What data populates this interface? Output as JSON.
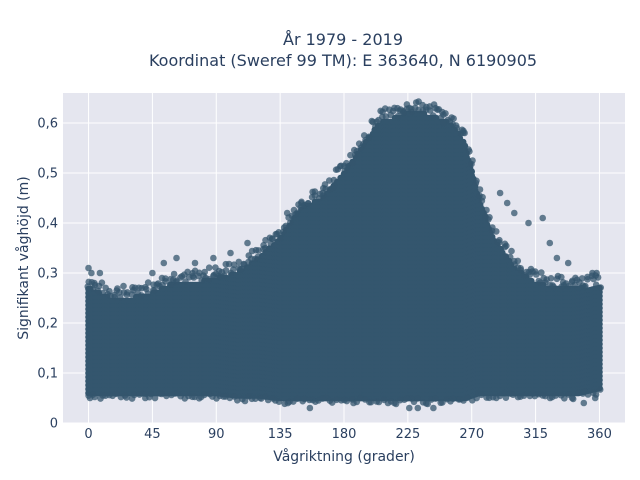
{
  "chart_data": {
    "type": "scatter",
    "title": "År 1979 - 2019",
    "subtitle": "Koordinat (Sweref 99 TM): E 363640, N 6190905",
    "xlabel": "Vågriktning (grader)",
    "ylabel": "Signifikant våghöjd (m)",
    "xlim": [
      -18,
      378
    ],
    "ylim": [
      0,
      0.66
    ],
    "x_ticks": [
      0,
      45,
      90,
      135,
      180,
      225,
      270,
      315,
      360
    ],
    "x_tick_labels": [
      "0",
      "45",
      "90",
      "135",
      "180",
      "225",
      "270",
      "315",
      "360"
    ],
    "y_ticks": [
      0,
      0.1,
      0.2,
      0.3,
      0.4,
      0.5,
      0.6
    ],
    "y_tick_labels": [
      "0",
      "0,1",
      "0,2",
      "0,3",
      "0,4",
      "0,5",
      "0,6"
    ],
    "grid": true,
    "marker_color": "#34566e",
    "background_color": "#e5e6ef",
    "envelope": {
      "direction": [
        0,
        15,
        30,
        45,
        60,
        75,
        90,
        105,
        120,
        135,
        150,
        165,
        180,
        195,
        205,
        215,
        225,
        235,
        245,
        255,
        265,
        275,
        285,
        300,
        315,
        330,
        345,
        360
      ],
      "min_height": [
        0.06,
        0.06,
        0.06,
        0.06,
        0.06,
        0.06,
        0.06,
        0.055,
        0.055,
        0.05,
        0.05,
        0.05,
        0.05,
        0.05,
        0.05,
        0.05,
        0.05,
        0.05,
        0.05,
        0.05,
        0.05,
        0.06,
        0.06,
        0.06,
        0.06,
        0.06,
        0.06,
        0.07
      ],
      "max_height": [
        0.27,
        0.25,
        0.25,
        0.26,
        0.28,
        0.28,
        0.29,
        0.3,
        0.33,
        0.37,
        0.43,
        0.45,
        0.5,
        0.56,
        0.6,
        0.61,
        0.62,
        0.62,
        0.61,
        0.6,
        0.56,
        0.45,
        0.37,
        0.31,
        0.28,
        0.27,
        0.27,
        0.27
      ]
    },
    "outliers": [
      {
        "x": 0,
        "y": 0.31
      },
      {
        "x": 2,
        "y": 0.3
      },
      {
        "x": 8,
        "y": 0.3
      },
      {
        "x": 45,
        "y": 0.3
      },
      {
        "x": 53,
        "y": 0.32
      },
      {
        "x": 62,
        "y": 0.33
      },
      {
        "x": 75,
        "y": 0.32
      },
      {
        "x": 88,
        "y": 0.33
      },
      {
        "x": 100,
        "y": 0.34
      },
      {
        "x": 112,
        "y": 0.36
      },
      {
        "x": 140,
        "y": 0.42
      },
      {
        "x": 150,
        "y": 0.44
      },
      {
        "x": 165,
        "y": 0.46
      },
      {
        "x": 172,
        "y": 0.47
      },
      {
        "x": 226,
        "y": 0.63
      },
      {
        "x": 222,
        "y": 0.62
      },
      {
        "x": 250,
        "y": 0.6
      },
      {
        "x": 265,
        "y": 0.58
      },
      {
        "x": 290,
        "y": 0.46
      },
      {
        "x": 295,
        "y": 0.44
      },
      {
        "x": 300,
        "y": 0.42
      },
      {
        "x": 310,
        "y": 0.4
      },
      {
        "x": 320,
        "y": 0.41
      },
      {
        "x": 325,
        "y": 0.36
      },
      {
        "x": 330,
        "y": 0.33
      },
      {
        "x": 338,
        "y": 0.32
      },
      {
        "x": 355,
        "y": 0.3
      },
      {
        "x": 358,
        "y": 0.3
      },
      {
        "x": 1,
        "y": 0.05
      },
      {
        "x": 40,
        "y": 0.05
      },
      {
        "x": 156,
        "y": 0.03
      },
      {
        "x": 226,
        "y": 0.03
      },
      {
        "x": 232,
        "y": 0.03
      },
      {
        "x": 243,
        "y": 0.03
      },
      {
        "x": 357,
        "y": 0.05
      },
      {
        "x": 349,
        "y": 0.04
      }
    ]
  }
}
